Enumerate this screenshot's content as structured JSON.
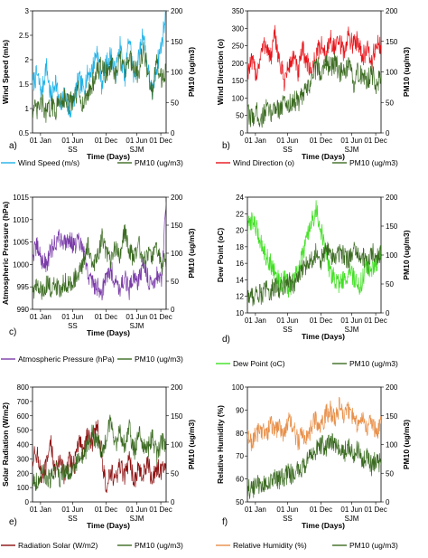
{
  "chart_data": [
    {
      "type": "line",
      "panel_letter": "a)",
      "xlabel": "Time (Days)",
      "x_tick_labels": [
        "01 Jan",
        "01 Jun",
        "01 Dec",
        "01 Jun",
        "01 Dec"
      ],
      "site_labels": [
        "SS",
        "SJM"
      ],
      "ylabel_left": "Wind Speed (m/s)",
      "ylim_left": [
        0.5,
        3.0
      ],
      "yticks_left": [
        "0.5",
        "1",
        "1.5",
        "2",
        "2.5",
        "3"
      ],
      "ylabel_right": "PM10 (ug/m3)",
      "ylim_right": [
        0,
        200
      ],
      "yticks_right": [
        "0",
        "50",
        "100",
        "150",
        "200"
      ],
      "series": [
        {
          "name": "Wind Speed (m/s)",
          "axis": "left",
          "color": "#1fb2e8",
          "values": [
            1.5,
            1.7,
            1.3,
            1.9,
            1.2,
            1.6,
            1.0,
            1.3,
            0.9,
            1.2,
            1.6,
            1.4,
            1.7,
            1.8,
            2.2,
            1.5,
            1.9,
            2.1,
            1.7,
            2.3,
            1.6,
            2.5,
            1.6,
            2.0,
            2.6,
            1.8,
            1.3,
            1.9,
            2.3,
            3.0
          ]
        },
        {
          "name": "PM10  (ug/m3)",
          "axis": "right",
          "color": "#3b6b21",
          "values": [
            40,
            35,
            50,
            30,
            45,
            38,
            55,
            60,
            48,
            52,
            70,
            45,
            65,
            80,
            100,
            110,
            95,
            115,
            90,
            120,
            100,
            125,
            110,
            95,
            140,
            100,
            70,
            115,
            90,
            105
          ]
        }
      ]
    },
    {
      "type": "line",
      "panel_letter": "b)",
      "xlabel": "Time (Days)",
      "x_tick_labels": [
        "01 Jan",
        "01 Jun",
        "01 Dec",
        "01 Jun",
        "01 Dec"
      ],
      "site_labels": [
        "SS",
        "SJM"
      ],
      "ylabel_left": "Wind Direction (o)",
      "ylim_left": [
        0,
        350
      ],
      "yticks_left": [
        "0",
        "50",
        "100",
        "150",
        "200",
        "250",
        "300",
        "350"
      ],
      "ylabel_right": "PM10 (ug/m3)",
      "ylim_right": [
        0,
        200
      ],
      "yticks_right": [
        "0",
        "50",
        "100",
        "150",
        "200"
      ],
      "series": [
        {
          "name": "Wind Direction (o)",
          "axis": "left",
          "color": "#e8141a",
          "values": [
            180,
            200,
            170,
            230,
            260,
            210,
            280,
            200,
            150,
            190,
            220,
            170,
            240,
            200,
            180,
            230,
            250,
            220,
            270,
            240,
            260,
            230,
            280,
            250,
            270,
            220,
            240,
            200,
            260,
            240
          ]
        },
        {
          "name": "PM10  (ug/m3)",
          "axis": "right",
          "color": "#3b6b21",
          "values": [
            30,
            25,
            35,
            20,
            40,
            30,
            45,
            40,
            50,
            45,
            55,
            50,
            60,
            70,
            90,
            110,
            100,
            120,
            105,
            115,
            100,
            95,
            110,
            80,
            100,
            90,
            85,
            100,
            75,
            95
          ]
        }
      ]
    },
    {
      "type": "line",
      "panel_letter": "c)",
      "xlabel": "Time (Days)",
      "x_tick_labels": [
        "01 Jan",
        "01 Jun",
        "01 Dec",
        "01 Jun",
        "01 Dec"
      ],
      "site_labels": [
        "SS",
        "SJM"
      ],
      "ylabel_left": "Atmospheric Pressure (hPa)",
      "ylim_left": [
        990,
        1015
      ],
      "yticks_left": [
        "990",
        "995",
        "1000",
        "1005",
        "1010",
        "1015"
      ],
      "ylabel_right": "PM10 (ug/m3)",
      "ylim_right": [
        0,
        200
      ],
      "yticks_right": [
        "0",
        "50",
        "100",
        "150",
        "200"
      ],
      "series": [
        {
          "name": "Atmospheric Pressure (hPa)",
          "axis": "left",
          "color": "#7a3ca8",
          "values": [
            1002,
            1004,
            1001,
            1000,
            1003,
            1005,
            1006,
            1005,
            1006,
            1004,
            1005,
            1003,
            998,
            996,
            995,
            994,
            997,
            999,
            996,
            995,
            997,
            994,
            998,
            996,
            1000,
            997,
            995,
            998,
            996,
            1014
          ]
        },
        {
          "name": "PM10  (ug/m3)",
          "axis": "right",
          "color": "#3b6b21",
          "values": [
            35,
            40,
            30,
            45,
            38,
            42,
            35,
            50,
            45,
            55,
            60,
            80,
            120,
            70,
            90,
            130,
            100,
            85,
            110,
            95,
            140,
            105,
            90,
            120,
            80,
            100,
            95,
            110,
            75,
            90
          ]
        }
      ]
    },
    {
      "type": "line",
      "panel_letter": "d)",
      "xlabel": "Time (Days)",
      "x_tick_labels": [
        "01 Jan",
        "01 Jun",
        "01 Dec",
        "01 Jun",
        "01 Dec"
      ],
      "site_labels": [
        "SS",
        "SJM"
      ],
      "ylabel_left": "Dew Point (oC)",
      "ylim_left": [
        10,
        24
      ],
      "yticks_left": [
        "10",
        "12",
        "14",
        "16",
        "18",
        "20",
        "22",
        "24"
      ],
      "ylabel_right": "PM10 (ug/m3)",
      "ylim_right": [
        0,
        200
      ],
      "yticks_right": [
        "0",
        "50",
        "100",
        "150",
        "200"
      ],
      "series": [
        {
          "name": "Dew Point (oC)",
          "axis": "left",
          "color": "#3fe021",
          "values": [
            20,
            21.5,
            20,
            18.5,
            17,
            16,
            15,
            13.5,
            14,
            13,
            14,
            15,
            17,
            19,
            21,
            22.5,
            20,
            17,
            15,
            14,
            13.5,
            14,
            15,
            14.5,
            13,
            14,
            16,
            15,
            16,
            18
          ]
        },
        {
          "name": "PM10 (ug/m3)",
          "axis": "right",
          "color": "#3b6b21",
          "values": [
            30,
            28,
            35,
            32,
            40,
            38,
            45,
            42,
            50,
            55,
            48,
            60,
            75,
            85,
            95,
            105,
            90,
            110,
            100,
            95,
            105,
            100,
            90,
            110,
            95,
            100,
            80,
            105,
            95,
            100
          ]
        }
      ]
    },
    {
      "type": "line",
      "panel_letter": "e)",
      "xlabel": "Time (Days)",
      "x_tick_labels": [
        "01 Jan",
        "01 Jun",
        "01 Dec",
        "01 Jun",
        "01 Dec"
      ],
      "site_labels": [
        "SS",
        "SJM"
      ],
      "ylabel_left": "Solar Radiation (W/m2)",
      "ylim_left": [
        0,
        800
      ],
      "yticks_left": [
        "0",
        "100",
        "200",
        "300",
        "400",
        "500",
        "600",
        "700",
        "800"
      ],
      "ylabel_right": "PM10 (ug/m3)",
      "ylim_right": [
        0,
        200
      ],
      "yticks_right": [
        "0",
        "50",
        "100",
        "150",
        "200"
      ],
      "series": [
        {
          "name": "Radiation Solar (W/m2)",
          "axis": "left",
          "color": "#8b0f0f",
          "values": [
            300,
            350,
            150,
            250,
            400,
            200,
            330,
            150,
            300,
            250,
            420,
            350,
            500,
            400,
            550,
            300,
            100,
            200,
            150,
            250,
            180,
            300,
            150,
            220,
            180,
            280,
            150,
            250,
            200,
            300
          ]
        },
        {
          "name": "PM10 (ug/m3)",
          "axis": "right",
          "color": "#3b6b21",
          "values": [
            40,
            35,
            50,
            45,
            38,
            55,
            42,
            60,
            48,
            65,
            70,
            80,
            95,
            120,
            105,
            90,
            110,
            140,
            100,
            125,
            95,
            130,
            85,
            120,
            100,
            90,
            115,
            80,
            105,
            95
          ]
        }
      ]
    },
    {
      "type": "line",
      "panel_letter": "f)",
      "xlabel": "Time (Days)",
      "x_tick_labels": [
        "01 Jan",
        "01 Jun",
        "01 Dec",
        "01 Jun",
        "01 Dec"
      ],
      "site_labels": [
        "SS",
        "SJM"
      ],
      "ylabel_left": "Relative Humidity (%)",
      "ylim_left": [
        50,
        100
      ],
      "yticks_left": [
        "50",
        "60",
        "70",
        "80",
        "90",
        "100"
      ],
      "ylabel_right": "PM10 (ug/m3)",
      "ylim_right": [
        0,
        200
      ],
      "yticks_right": [
        "0",
        "50",
        "100",
        "150",
        "200"
      ],
      "series": [
        {
          "name": "Relative Humidity (%)",
          "axis": "left",
          "color": "#e8904a",
          "values": [
            78,
            76,
            80,
            82,
            79,
            84,
            81,
            83,
            80,
            85,
            82,
            76,
            80,
            78,
            83,
            86,
            82,
            88,
            90,
            86,
            92,
            88,
            90,
            86,
            84,
            88,
            82,
            86,
            80,
            84
          ]
        },
        {
          "name": "PM10 (ug/m3)",
          "axis": "right",
          "color": "#3b6b21",
          "values": [
            25,
            20,
            30,
            28,
            35,
            30,
            40,
            38,
            45,
            50,
            48,
            55,
            60,
            70,
            80,
            90,
            100,
            95,
            110,
            100,
            90,
            85,
            100,
            80,
            95,
            70,
            85,
            60,
            75,
            65
          ]
        }
      ]
    }
  ]
}
